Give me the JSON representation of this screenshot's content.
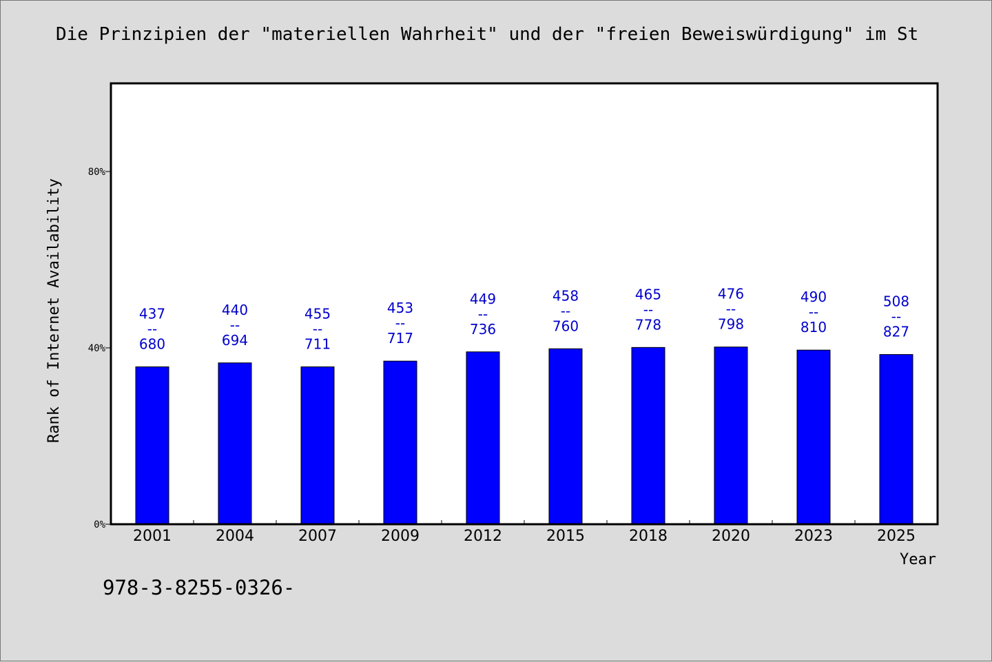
{
  "title": "Die Prinzipien der \"materiellen Wahrheit\" und der \"freien Beweiswürdigung\" im St",
  "footer_text": "978-3-8255-0326-",
  "colors": {
    "bar": "#0000ff",
    "label": "#0000cc",
    "background": "#dcdcdc",
    "plot_background": "#ffffff"
  },
  "chart_data": {
    "type": "bar",
    "title": "Die Prinzipien der \"materiellen Wahrheit\" und der \"freien Beweiswürdigung\" im St",
    "xlabel": "Year",
    "ylabel": "Rank of Internet Availability",
    "categories": [
      "2001",
      "2004",
      "2007",
      "2009",
      "2012",
      "2015",
      "2018",
      "2020",
      "2023",
      "2025"
    ],
    "values": [
      0.357,
      0.366,
      0.357,
      0.37,
      0.391,
      0.398,
      0.401,
      0.402,
      0.395,
      0.385
    ],
    "value_unit": "fraction (axis shown as percent)",
    "data_labels": [
      {
        "top": "437",
        "mid": "--",
        "bottom": "680"
      },
      {
        "top": "440",
        "mid": "--",
        "bottom": "694"
      },
      {
        "top": "455",
        "mid": "--",
        "bottom": "711"
      },
      {
        "top": "453",
        "mid": "--",
        "bottom": "717"
      },
      {
        "top": "449",
        "mid": "--",
        "bottom": "736"
      },
      {
        "top": "458",
        "mid": "--",
        "bottom": "760"
      },
      {
        "top": "465",
        "mid": "--",
        "bottom": "778"
      },
      {
        "top": "476",
        "mid": "--",
        "bottom": "798"
      },
      {
        "top": "490",
        "mid": "--",
        "bottom": "810"
      },
      {
        "top": "508",
        "mid": "--",
        "bottom": "827"
      }
    ],
    "yticks": [
      {
        "value": 0,
        "label": "0%"
      },
      {
        "value": 0.4,
        "label": "40%"
      },
      {
        "value": 0.8,
        "label": "80%"
      }
    ],
    "ylim": [
      0,
      1.0
    ],
    "grid": false,
    "legend": "none"
  }
}
